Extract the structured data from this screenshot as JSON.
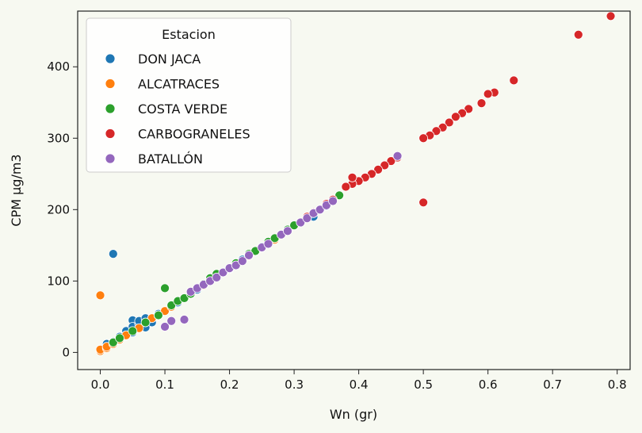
{
  "chart_data": {
    "type": "scatter",
    "xlabel": "Wn (gr)",
    "ylabel": "CPM µg/m3",
    "xlim": [
      -0.035,
      0.82
    ],
    "ylim": [
      -24,
      478
    ],
    "xticks": [
      0.0,
      0.1,
      0.2,
      0.3,
      0.4,
      0.5,
      0.6,
      0.7,
      0.8
    ],
    "xtick_labels": [
      "0.0",
      "0.1",
      "0.2",
      "0.3",
      "0.4",
      "0.5",
      "0.6",
      "0.7",
      "0.8"
    ],
    "yticks": [
      0,
      100,
      200,
      300,
      400
    ],
    "ytick_labels": [
      "0",
      "100",
      "200",
      "300",
      "400"
    ],
    "grid": false,
    "legend": {
      "title": "Estacion",
      "placement": "top-left"
    },
    "series": [
      {
        "name": "DON JACA",
        "color": "#1f77b4",
        "points": [
          [
            0.02,
            138
          ],
          [
            0.01,
            12
          ],
          [
            0.02,
            15
          ],
          [
            0.03,
            22
          ],
          [
            0.04,
            30
          ],
          [
            0.05,
            45
          ],
          [
            0.05,
            36
          ],
          [
            0.06,
            40
          ],
          [
            0.06,
            44
          ],
          [
            0.07,
            48
          ],
          [
            0.07,
            35
          ],
          [
            0.08,
            42
          ],
          [
            0.05,
            28
          ],
          [
            0.04,
            24
          ],
          [
            0.09,
            54
          ],
          [
            0.12,
            70
          ],
          [
            0.15,
            88
          ],
          [
            0.18,
            108
          ],
          [
            0.2,
            117
          ],
          [
            0.22,
            130
          ],
          [
            0.25,
            148
          ],
          [
            0.28,
            165
          ],
          [
            0.3,
            178
          ],
          [
            0.33,
            190
          ],
          [
            0.35,
            205
          ]
        ]
      },
      {
        "name": "ALCATRACES",
        "color": "#ff7f0e",
        "points": [
          [
            0.0,
            80
          ],
          [
            0.0,
            2
          ],
          [
            0.0,
            4
          ],
          [
            0.01,
            6
          ],
          [
            0.01,
            8
          ],
          [
            0.02,
            12
          ],
          [
            0.03,
            18
          ],
          [
            0.04,
            24
          ],
          [
            0.06,
            34
          ],
          [
            0.08,
            48
          ],
          [
            0.09,
            52
          ],
          [
            0.1,
            58
          ],
          [
            0.11,
            64
          ],
          [
            0.13,
            76
          ],
          [
            0.16,
            94
          ],
          [
            0.19,
            112
          ],
          [
            0.23,
            135
          ],
          [
            0.27,
            158
          ],
          [
            0.31,
            182
          ],
          [
            0.34,
            200
          ],
          [
            0.37,
            220
          ]
        ]
      },
      {
        "name": "COSTA VERDE",
        "color": "#2ca02c",
        "points": [
          [
            0.1,
            90
          ],
          [
            0.02,
            14
          ],
          [
            0.03,
            20
          ],
          [
            0.05,
            30
          ],
          [
            0.07,
            42
          ],
          [
            0.09,
            52
          ],
          [
            0.11,
            66
          ],
          [
            0.12,
            72
          ],
          [
            0.13,
            76
          ],
          [
            0.14,
            82
          ],
          [
            0.16,
            96
          ],
          [
            0.17,
            104
          ],
          [
            0.18,
            110
          ],
          [
            0.21,
            125
          ],
          [
            0.23,
            138
          ],
          [
            0.24,
            142
          ],
          [
            0.26,
            155
          ],
          [
            0.27,
            160
          ],
          [
            0.29,
            172
          ],
          [
            0.3,
            178
          ],
          [
            0.32,
            188
          ],
          [
            0.35,
            207
          ],
          [
            0.37,
            220
          ]
        ]
      },
      {
        "name": "CARBOGRANELES",
        "color": "#d62728",
        "points": [
          [
            0.79,
            471
          ],
          [
            0.74,
            445
          ],
          [
            0.64,
            381
          ],
          [
            0.61,
            364
          ],
          [
            0.6,
            362
          ],
          [
            0.59,
            349
          ],
          [
            0.57,
            341
          ],
          [
            0.56,
            335
          ],
          [
            0.55,
            330
          ],
          [
            0.54,
            322
          ],
          [
            0.53,
            315
          ],
          [
            0.52,
            310
          ],
          [
            0.51,
            304
          ],
          [
            0.5,
            300
          ],
          [
            0.5,
            210
          ],
          [
            0.46,
            273
          ],
          [
            0.45,
            268
          ],
          [
            0.44,
            262
          ],
          [
            0.43,
            256
          ],
          [
            0.42,
            250
          ],
          [
            0.41,
            245
          ],
          [
            0.4,
            240
          ],
          [
            0.39,
            236
          ],
          [
            0.38,
            232
          ],
          [
            0.39,
            245
          ],
          [
            0.36,
            214
          ],
          [
            0.35,
            208
          ],
          [
            0.33,
            196
          ],
          [
            0.32,
            190
          ]
        ]
      },
      {
        "name": "BATALLÓN",
        "color": "#9467bd",
        "points": [
          [
            0.1,
            36
          ],
          [
            0.11,
            44
          ],
          [
            0.13,
            46
          ],
          [
            0.14,
            85
          ],
          [
            0.15,
            90
          ],
          [
            0.16,
            95
          ],
          [
            0.17,
            100
          ],
          [
            0.18,
            105
          ],
          [
            0.19,
            112
          ],
          [
            0.2,
            118
          ],
          [
            0.21,
            122
          ],
          [
            0.22,
            128
          ],
          [
            0.23,
            136
          ],
          [
            0.25,
            147
          ],
          [
            0.26,
            152
          ],
          [
            0.28,
            165
          ],
          [
            0.29,
            170
          ],
          [
            0.31,
            182
          ],
          [
            0.32,
            188
          ],
          [
            0.33,
            195
          ],
          [
            0.34,
            200
          ],
          [
            0.35,
            206
          ],
          [
            0.36,
            212
          ],
          [
            0.46,
            275
          ]
        ]
      }
    ]
  }
}
